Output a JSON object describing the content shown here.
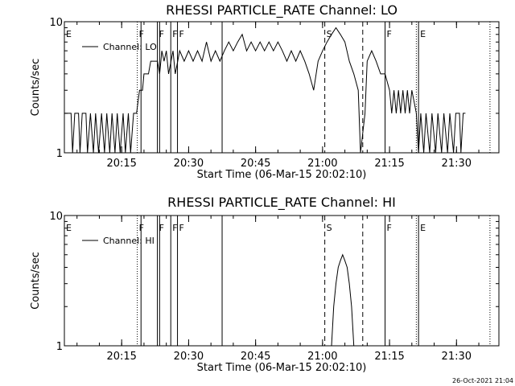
{
  "footer": {
    "timestamp": "26-Oct-2021 21:04"
  },
  "colors": {
    "background": "#ffffff",
    "foreground": "#000000"
  },
  "chart_data": [
    {
      "type": "line",
      "title": "RHESSI PARTICLE_RATE Channel: LO",
      "xlabel": "Start Time (06-Mar-15 20:02:10)",
      "ylabel": "Counts/sec",
      "yscale": "log",
      "xlim": [
        "20:02:10",
        "21:39:30"
      ],
      "ylim": [
        1,
        10
      ],
      "xticks": [
        "20:15",
        "20:30",
        "20:45",
        "21:00",
        "21:15",
        "21:30"
      ],
      "yticks": [
        "1",
        "10"
      ],
      "legend": {
        "position": "top-left",
        "entries": [
          "Channel: LO"
        ]
      },
      "markers": [
        {
          "label": "E",
          "time": "20:02:10",
          "style": "dotted"
        },
        {
          "label": "F",
          "time": "20:18:30",
          "style": "dotted"
        },
        {
          "label": "",
          "time": "20:19:20",
          "style": "solid"
        },
        {
          "label": "F",
          "time": "20:23:00",
          "style": "solid"
        },
        {
          "label": "",
          "time": "20:23:30",
          "style": "solid"
        },
        {
          "label": "F",
          "time": "20:26:00",
          "style": "solid"
        },
        {
          "label": "F",
          "time": "20:27:30",
          "style": "solid"
        },
        {
          "label": "",
          "time": "20:37:30",
          "style": "solid"
        },
        {
          "label": "S",
          "time": "21:00:30",
          "style": "dashed"
        },
        {
          "label": "",
          "time": "21:09:00",
          "style": "dashed"
        },
        {
          "label": "F",
          "time": "21:14:00",
          "style": "solid"
        },
        {
          "label": "",
          "time": "21:21:00",
          "style": "dotted"
        },
        {
          "label": "E",
          "time": "21:21:30",
          "style": "solid"
        },
        {
          "label": "",
          "time": "21:37:30",
          "style": "dotted"
        }
      ],
      "series": [
        {
          "name": "Channel: LO",
          "points": [
            [
              "20:02:10",
              2
            ],
            [
              "20:03:40",
              2
            ],
            [
              "20:04:00",
              1
            ],
            [
              "20:04:30",
              2
            ],
            [
              "20:05:20",
              2
            ],
            [
              "20:05:40",
              1
            ],
            [
              "20:06:10",
              2
            ],
            [
              "20:07:00",
              2
            ],
            [
              "20:07:20",
              1
            ],
            [
              "20:08:00",
              2
            ],
            [
              "20:08:40",
              1
            ],
            [
              "20:09:10",
              2
            ],
            [
              "20:09:50",
              1
            ],
            [
              "20:10:30",
              2
            ],
            [
              "20:11:10",
              1
            ],
            [
              "20:11:40",
              2
            ],
            [
              "20:12:20",
              1
            ],
            [
              "20:12:50",
              2
            ],
            [
              "20:13:30",
              1
            ],
            [
              "20:14:00",
              2
            ],
            [
              "20:14:40",
              1
            ],
            [
              "20:15:20",
              2
            ],
            [
              "20:15:50",
              1
            ],
            [
              "20:16:30",
              2
            ],
            [
              "20:17:00",
              1
            ],
            [
              "20:17:40",
              2
            ],
            [
              "20:18:20",
              2
            ],
            [
              "20:19:00",
              3
            ],
            [
              "20:19:40",
              3
            ],
            [
              "20:20:00",
              4
            ],
            [
              "20:21:00",
              4
            ],
            [
              "20:21:30",
              5
            ],
            [
              "20:23:00",
              5
            ],
            [
              "20:23:30",
              4
            ],
            [
              "20:24:00",
              6
            ],
            [
              "20:24:30",
              5
            ],
            [
              "20:25:00",
              6
            ],
            [
              "20:25:30",
              4
            ],
            [
              "20:26:30",
              6
            ],
            [
              "20:27:00",
              4
            ],
            [
              "20:28:00",
              6
            ],
            [
              "20:29:00",
              5
            ],
            [
              "20:30:00",
              6
            ],
            [
              "20:31:00",
              5
            ],
            [
              "20:32:00",
              6
            ],
            [
              "20:33:00",
              5
            ],
            [
              "20:34:00",
              7
            ],
            [
              "20:35:00",
              5
            ],
            [
              "20:36:00",
              6
            ],
            [
              "20:37:00",
              5
            ],
            [
              "20:38:00",
              6
            ],
            [
              "20:39:00",
              7
            ],
            [
              "20:40:00",
              6
            ],
            [
              "20:41:00",
              7
            ],
            [
              "20:42:00",
              8
            ],
            [
              "20:43:00",
              6
            ],
            [
              "20:44:00",
              7
            ],
            [
              "20:45:00",
              6
            ],
            [
              "20:46:00",
              7
            ],
            [
              "20:47:00",
              6
            ],
            [
              "20:48:00",
              7
            ],
            [
              "20:49:00",
              6
            ],
            [
              "20:50:00",
              7
            ],
            [
              "20:51:00",
              6
            ],
            [
              "20:52:00",
              5
            ],
            [
              "20:53:00",
              6
            ],
            [
              "20:54:00",
              5
            ],
            [
              "20:55:00",
              6
            ],
            [
              "20:56:00",
              5
            ],
            [
              "20:57:00",
              4
            ],
            [
              "20:58:00",
              3
            ],
            [
              "20:59:00",
              5
            ],
            [
              "21:00:00",
              6
            ],
            [
              "21:01:00",
              7
            ],
            [
              "21:02:00",
              8
            ],
            [
              "21:03:00",
              9
            ],
            [
              "21:04:00",
              8
            ],
            [
              "21:05:00",
              7
            ],
            [
              "21:06:00",
              5
            ],
            [
              "21:07:00",
              4
            ],
            [
              "21:08:00",
              3
            ],
            [
              "21:08:30",
              1
            ],
            [
              "21:09:30",
              2
            ],
            [
              "21:10:00",
              5
            ],
            [
              "21:11:00",
              6
            ],
            [
              "21:12:00",
              5
            ],
            [
              "21:13:00",
              4
            ],
            [
              "21:14:00",
              4
            ],
            [
              "21:15:00",
              3
            ],
            [
              "21:15:30",
              2
            ],
            [
              "21:16:00",
              3
            ],
            [
              "21:16:30",
              2
            ],
            [
              "21:17:00",
              3
            ],
            [
              "21:17:30",
              2
            ],
            [
              "21:18:00",
              3
            ],
            [
              "21:18:30",
              2
            ],
            [
              "21:19:00",
              3
            ],
            [
              "21:19:30",
              2
            ],
            [
              "21:20:00",
              3
            ],
            [
              "21:21:00",
              2
            ],
            [
              "21:21:30",
              1
            ],
            [
              "21:22:00",
              2
            ],
            [
              "21:22:40",
              1
            ],
            [
              "21:23:10",
              2
            ],
            [
              "21:24:00",
              1
            ],
            [
              "21:24:30",
              2
            ],
            [
              "21:25:20",
              1
            ],
            [
              "21:25:50",
              2
            ],
            [
              "21:26:40",
              1
            ],
            [
              "21:27:10",
              2
            ],
            [
              "21:28:00",
              1
            ],
            [
              "21:28:30",
              2
            ],
            [
              "21:29:20",
              1
            ],
            [
              "21:29:50",
              2
            ],
            [
              "21:30:40",
              2
            ],
            [
              "21:31:00",
              1
            ],
            [
              "21:31:30",
              2
            ],
            [
              "21:32:00",
              2
            ]
          ]
        }
      ]
    },
    {
      "type": "line",
      "title": "RHESSI PARTICLE_RATE Channel: HI",
      "xlabel": "Start Time (06-Mar-15 20:02:10)",
      "ylabel": "Counts/sec",
      "yscale": "log",
      "xlim": [
        "20:02:10",
        "21:39:30"
      ],
      "ylim": [
        1,
        10
      ],
      "xticks": [
        "20:15",
        "20:30",
        "20:45",
        "21:00",
        "21:15",
        "21:30"
      ],
      "yticks": [
        "1",
        "10"
      ],
      "legend": {
        "position": "top-left",
        "entries": [
          "Channel: HI"
        ]
      },
      "markers": [
        {
          "label": "E",
          "time": "20:02:10",
          "style": "dotted"
        },
        {
          "label": "F",
          "time": "20:18:30",
          "style": "dotted"
        },
        {
          "label": "",
          "time": "20:19:20",
          "style": "solid"
        },
        {
          "label": "F",
          "time": "20:23:00",
          "style": "solid"
        },
        {
          "label": "",
          "time": "20:23:30",
          "style": "solid"
        },
        {
          "label": "F",
          "time": "20:26:00",
          "style": "solid"
        },
        {
          "label": "F",
          "time": "20:27:30",
          "style": "solid"
        },
        {
          "label": "",
          "time": "20:37:30",
          "style": "solid"
        },
        {
          "label": "S",
          "time": "21:00:30",
          "style": "dashed"
        },
        {
          "label": "",
          "time": "21:09:00",
          "style": "dashed"
        },
        {
          "label": "F",
          "time": "21:14:00",
          "style": "solid"
        },
        {
          "label": "",
          "time": "21:21:00",
          "style": "dotted"
        },
        {
          "label": "E",
          "time": "21:21:30",
          "style": "solid"
        },
        {
          "label": "",
          "time": "21:37:30",
          "style": "dotted"
        }
      ],
      "series": [
        {
          "name": "Channel: HI",
          "points": [
            [
              "21:02:00",
              1
            ],
            [
              "21:02:30",
              2
            ],
            [
              "21:03:00",
              3
            ],
            [
              "21:03:30",
              4
            ],
            [
              "21:04:00",
              4.5
            ],
            [
              "21:04:30",
              5
            ],
            [
              "21:05:00",
              4.5
            ],
            [
              "21:05:30",
              4
            ],
            [
              "21:06:00",
              3
            ],
            [
              "21:06:30",
              2
            ],
            [
              "21:07:00",
              1
            ]
          ]
        }
      ]
    }
  ]
}
